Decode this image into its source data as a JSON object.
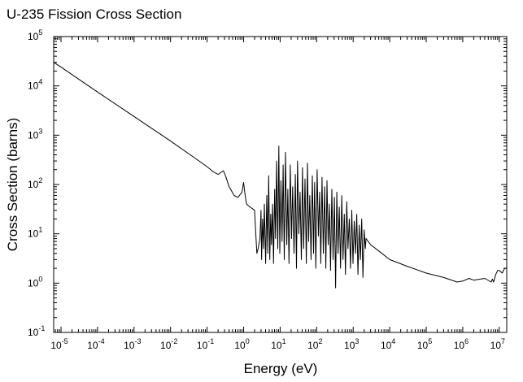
{
  "chart_data": {
    "type": "line",
    "title": "U-235 Fission Cross Section",
    "xlabel": "Energy (eV)",
    "ylabel": "Cross Section (barns)",
    "xscale": "log",
    "yscale": "log",
    "xlim": [
      6.3e-06,
      16000000
    ],
    "ylim": [
      0.1,
      100000
    ],
    "grid": false,
    "legend": "none",
    "x_ticks": [
      {
        "base": "10",
        "exp": "-5",
        "value": 1e-05
      },
      {
        "base": "10",
        "exp": "-4",
        "value": 0.0001
      },
      {
        "base": "10",
        "exp": "-3",
        "value": 0.001
      },
      {
        "base": "10",
        "exp": "-2",
        "value": 0.01
      },
      {
        "base": "10",
        "exp": "-1",
        "value": 0.1
      },
      {
        "base": "10",
        "exp": "0",
        "value": 1
      },
      {
        "base": "10",
        "exp": "1",
        "value": 10
      },
      {
        "base": "10",
        "exp": "2",
        "value": 100
      },
      {
        "base": "10",
        "exp": "3",
        "value": 1000
      },
      {
        "base": "10",
        "exp": "4",
        "value": 10000
      },
      {
        "base": "10",
        "exp": "5",
        "value": 100000
      },
      {
        "base": "10",
        "exp": "6",
        "value": 1000000
      },
      {
        "base": "10",
        "exp": "7",
        "value": 10000000
      }
    ],
    "y_ticks": [
      {
        "base": "10",
        "exp": "-1",
        "value": 0.1
      },
      {
        "base": "10",
        "exp": "0",
        "value": 1
      },
      {
        "base": "10",
        "exp": "1",
        "value": 10
      },
      {
        "base": "10",
        "exp": "2",
        "value": 100
      },
      {
        "base": "10",
        "exp": "3",
        "value": 1000
      },
      {
        "base": "10",
        "exp": "4",
        "value": 10000
      },
      {
        "base": "10",
        "exp": "5",
        "value": 100000
      }
    ],
    "series": [
      {
        "color": "#000000",
        "x": [
          6.3e-06,
          1e-05,
          0.0001,
          0.001,
          0.01,
          0.05,
          0.1,
          0.15,
          0.2,
          0.25,
          0.28,
          0.32,
          0.4,
          0.55,
          0.7,
          0.9,
          1.0,
          1.1,
          1.2,
          1.5,
          2.0,
          2.1,
          2.3,
          2.5,
          2.8,
          3.0,
          3.1,
          3.3,
          3.5,
          3.7,
          4.0,
          4.3,
          4.6,
          4.85,
          5.2,
          5.5,
          5.8,
          6.2,
          6.6,
          7.1,
          7.5,
          8.0,
          8.6,
          9.2,
          9.8,
          10.5,
          11.3,
          12.1,
          13,
          14,
          15.2,
          16.3,
          17.5,
          19,
          20.5,
          22,
          24,
          26,
          28,
          30,
          32.5,
          35,
          38,
          41,
          44,
          48,
          52,
          56,
          60,
          65,
          70,
          76,
          82,
          88,
          95,
          103,
          112,
          121,
          130,
          140,
          152,
          165,
          178,
          192,
          207,
          223,
          240,
          260,
          282,
          305,
          330,
          357,
          385,
          415,
          450,
          486,
          525,
          570,
          615,
          665,
          720,
          780,
          845,
          915,
          990,
          1070,
          1160,
          1250,
          1350,
          1460,
          1580,
          1710,
          1850,
          2000,
          2150,
          2250,
          3000,
          5000,
          10000,
          30000,
          100000,
          300000,
          700000,
          1000000,
          1500000,
          2000000,
          4000000,
          6000000,
          6500000,
          7000000,
          8000000,
          9000000,
          10000000,
          12000000,
          14000000,
          16000000
        ],
        "y": [
          30000,
          24000,
          7500,
          2400,
          760,
          330,
          230,
          180,
          160,
          180,
          190,
          150,
          90,
          60,
          55,
          70,
          110,
          60,
          40,
          35,
          30,
          14,
          4,
          5,
          8,
          30,
          3,
          20,
          5,
          40,
          2.5,
          60,
          4,
          150,
          3,
          25,
          6,
          40,
          2.5,
          80,
          8,
          300,
          5,
          600,
          4,
          120,
          7,
          250,
          3,
          450,
          6,
          80,
          2.5,
          250,
          8,
          90,
          4,
          160,
          2,
          300,
          10,
          70,
          3,
          220,
          5,
          130,
          2.5,
          270,
          7,
          60,
          3,
          150,
          4,
          110,
          2,
          200,
          9,
          70,
          2.5,
          140,
          4,
          90,
          2,
          120,
          6,
          40,
          1.8,
          80,
          3,
          55,
          0.8,
          70,
          4,
          35,
          2,
          60,
          3,
          25,
          1.5,
          45,
          5,
          20,
          2,
          30,
          2.5,
          18,
          4,
          25,
          1.5,
          15,
          3,
          20,
          1.3,
          12,
          5,
          8,
          6,
          4.5,
          3.0,
          2.2,
          1.6,
          1.3,
          1.05,
          1.1,
          1.25,
          1.15,
          1.25,
          1.05,
          1.2,
          1.05,
          1.5,
          1.8,
          1.8,
          1.6,
          2.0,
          2.0
        ]
      }
    ]
  }
}
